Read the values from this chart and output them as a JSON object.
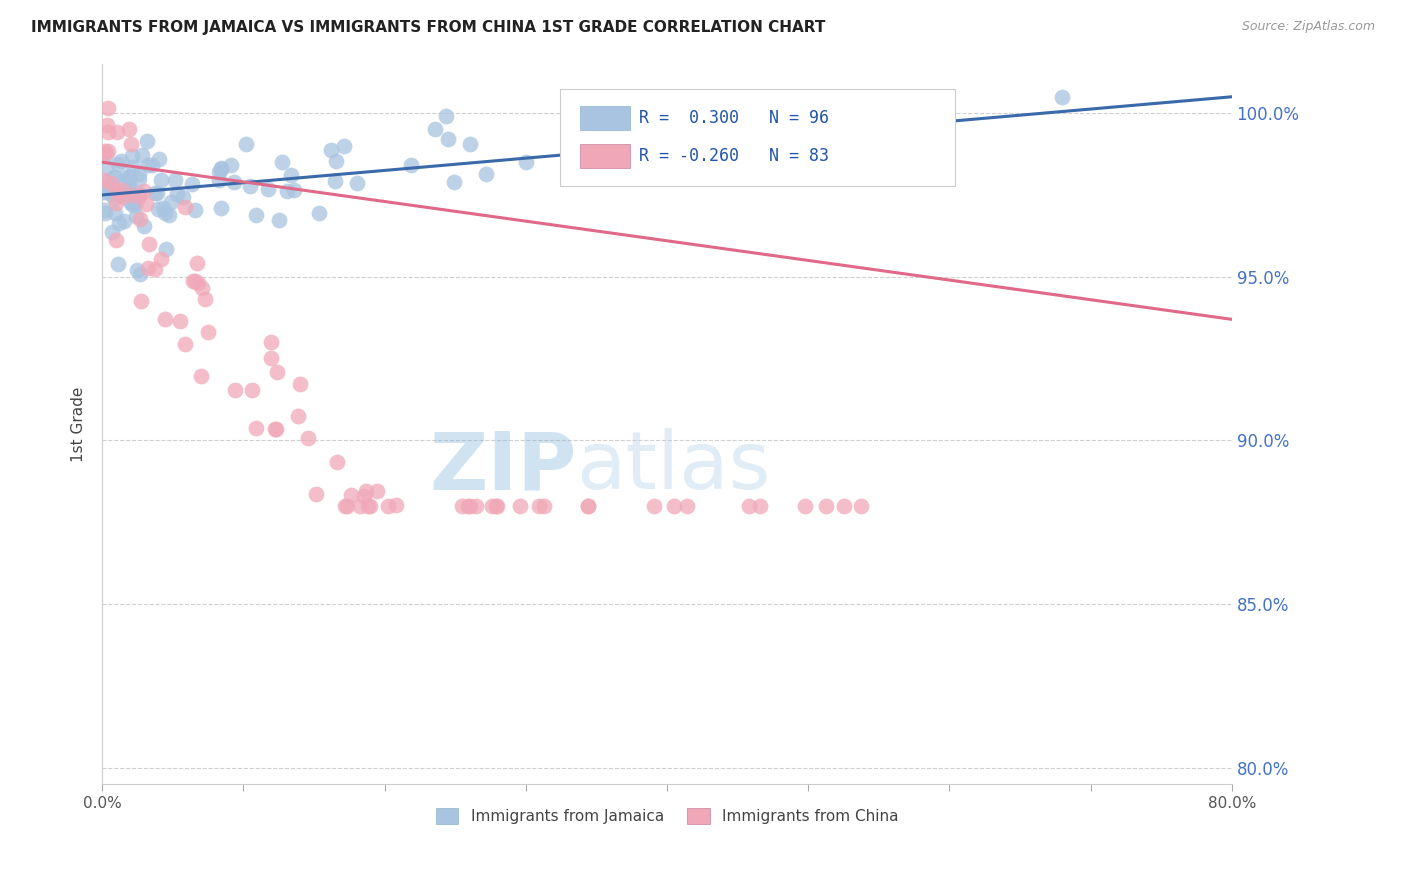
{
  "title": "IMMIGRANTS FROM JAMAICA VS IMMIGRANTS FROM CHINA 1ST GRADE CORRELATION CHART",
  "source": "Source: ZipAtlas.com",
  "ylabel": "1st Grade",
  "xlim": [
    0.0,
    0.8
  ],
  "ylim": [
    0.795,
    1.015
  ],
  "xticks": [
    0.0,
    0.1,
    0.2,
    0.3,
    0.4,
    0.5,
    0.6,
    0.7,
    0.8
  ],
  "xticklabels": [
    "0.0%",
    "",
    "",
    "",
    "",
    "",
    "",
    "",
    "80.0%"
  ],
  "yticks_right": [
    0.8,
    0.85,
    0.9,
    0.95,
    1.0
  ],
  "yticklabels_right": [
    "80.0%",
    "85.0%",
    "90.0%",
    "95.0%",
    "100.0%"
  ],
  "blue_r": 0.3,
  "blue_n": 96,
  "pink_r": -0.26,
  "pink_n": 83,
  "blue_color": "#A8C4E0",
  "pink_color": "#F0A8B8",
  "blue_line_color": "#3A6AAA",
  "pink_line_color": "#E06888",
  "watermark_zip": "ZIP",
  "watermark_atlas": "atlas",
  "legend_label_blue": "Immigrants from Jamaica",
  "legend_label_pink": "Immigrants from China",
  "blue_line_x0": 0.0,
  "blue_line_x1": 0.8,
  "blue_line_y0": 0.975,
  "blue_line_y1": 1.005,
  "pink_line_x0": 0.0,
  "pink_line_x1": 0.8,
  "pink_line_y0": 0.985,
  "pink_line_y1": 0.937
}
